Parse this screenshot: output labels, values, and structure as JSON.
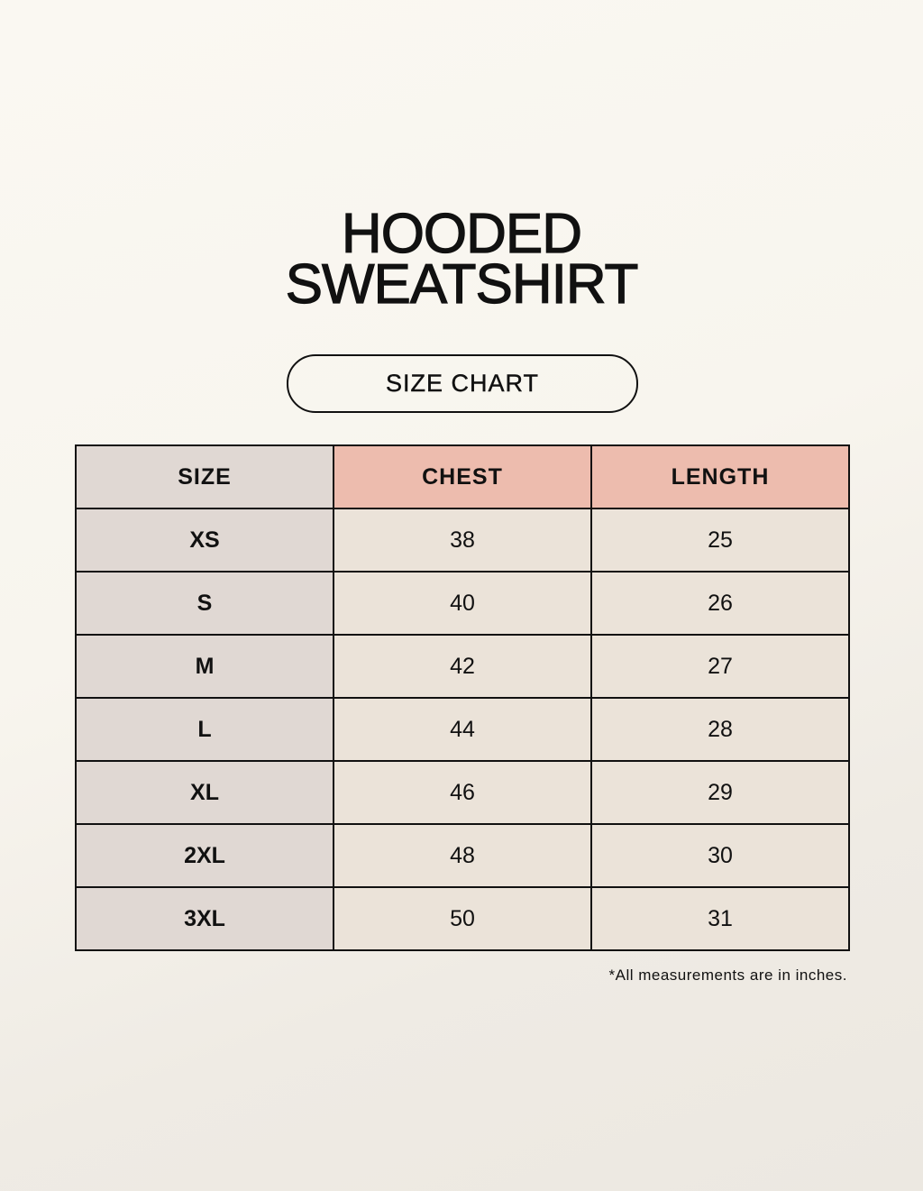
{
  "title_line1": "HOODED",
  "title_line2": "SWEATSHIRT",
  "subtitle": "SIZE CHART",
  "table": {
    "headers": [
      "SIZE",
      "CHEST",
      "LENGTH"
    ],
    "rows": [
      [
        "XS",
        "38",
        "25"
      ],
      [
        "S",
        "40",
        "26"
      ],
      [
        "M",
        "42",
        "27"
      ],
      [
        "L",
        "44",
        "28"
      ],
      [
        "XL",
        "46",
        "29"
      ],
      [
        "2XL",
        "48",
        "30"
      ],
      [
        "3XL",
        "50",
        "31"
      ]
    ]
  },
  "footnote": "*All measurements are in inches.",
  "colors": {
    "size_column": "#e0d8d3",
    "header_accent": "#edbcae",
    "value_cells": "#ebe3d9"
  }
}
